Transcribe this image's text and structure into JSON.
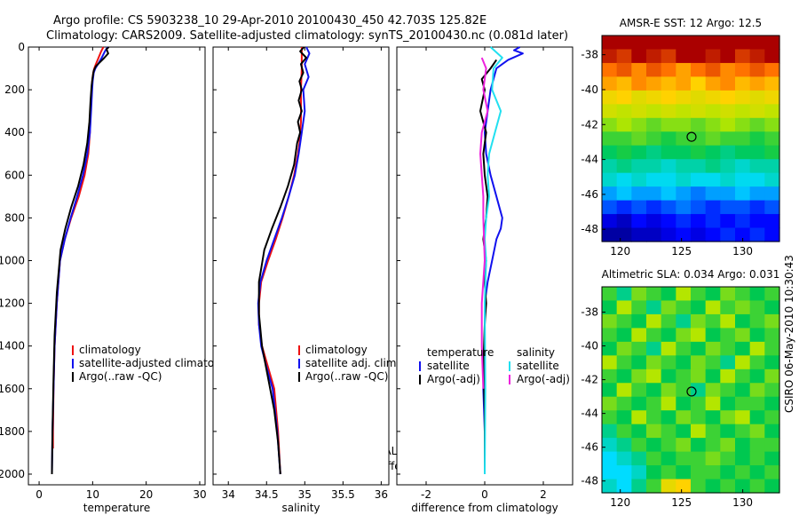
{
  "header": {
    "title_line1": "Argo profile: CS 5903238_10 29-Apr-2010 20100430_450 42.703S 125.82E",
    "title_line2": "Climatology: CARS2009. Satellite-adjusted climatology: synTS_20100430.nc (0.081d later)"
  },
  "side_label": "CSIRO 06-May-2010 10:30:43",
  "credit": {
    "line1": "Argo AUSTRALIA",
    "line2": "PI: Susan Wijffels"
  },
  "colors": {
    "climatology": "#ee1111",
    "satellite": "#1111ee",
    "argo": "#000000",
    "salinity_satellite": "#22e0f0",
    "salinity_argo": "#ee22dd",
    "marker": "#000000"
  },
  "chart_data": [
    {
      "type": "line",
      "name": "temperature-profile",
      "xlabel": "temperature",
      "ylabel": "",
      "xlim": [
        -2,
        31
      ],
      "ylim": [
        2050,
        0
      ],
      "xticks": [
        "0",
        "10",
        "20",
        "30"
      ],
      "xtick_values": [
        0,
        10,
        20,
        30
      ],
      "yticks": [
        "0",
        "200",
        "400",
        "600",
        "800",
        "1000",
        "1200",
        "1400",
        "1600",
        "1800",
        "2000"
      ],
      "ytick_values": [
        0,
        200,
        400,
        600,
        800,
        1000,
        1200,
        1400,
        1600,
        1800,
        2000
      ],
      "legend": [
        "climatology",
        "satellite-adjusted climatology",
        "Argo(..raw -QC)"
      ],
      "legend_placement": "lower-right",
      "series": [
        {
          "name": "climatology",
          "color_key": "climatology",
          "x": [
            12.0,
            11.6,
            11.1,
            10.6,
            10.3,
            10.1,
            9.9,
            9.8,
            9.6,
            9.5,
            9.2,
            8.5,
            7.4,
            6.0,
            4.8,
            3.9,
            3.3,
            2.9,
            2.7,
            2.6,
            2.6
          ],
          "y": [
            0,
            20,
            50,
            80,
            100,
            120,
            160,
            200,
            300,
            400,
            500,
            600,
            700,
            800,
            900,
            1000,
            1200,
            1400,
            1600,
            1800,
            1880
          ]
        },
        {
          "name": "satellite-adjusted climatology",
          "color_key": "satellite",
          "x": [
            12.8,
            12.3,
            11.7,
            11.0,
            10.5,
            10.2,
            10.0,
            9.9,
            9.7,
            9.5,
            9.0,
            8.2,
            7.1,
            5.9,
            4.8,
            3.9,
            3.3,
            2.9,
            2.7,
            2.5,
            2.4
          ],
          "y": [
            0,
            20,
            50,
            80,
            100,
            120,
            160,
            200,
            300,
            400,
            500,
            600,
            700,
            800,
            900,
            1000,
            1200,
            1400,
            1600,
            1800,
            2000
          ]
        },
        {
          "name": "Argo(..raw -QC)",
          "color_key": "argo",
          "x": [
            13.0,
            12.6,
            12.9,
            12.2,
            11.4,
            10.6,
            10.2,
            10.0,
            9.8,
            9.6,
            9.4,
            9.0,
            8.3,
            7.3,
            6.0,
            4.9,
            4.0,
            3.3,
            2.9,
            2.7,
            2.5,
            2.4
          ],
          "y": [
            0,
            10,
            30,
            50,
            70,
            90,
            110,
            140,
            180,
            250,
            350,
            450,
            550,
            650,
            750,
            850,
            950,
            1150,
            1350,
            1550,
            1800,
            2000
          ]
        }
      ]
    },
    {
      "type": "line",
      "name": "salinity-profile",
      "xlabel": "salinity",
      "ylabel": "",
      "xlim": [
        33.8,
        36.1
      ],
      "ylim": [
        2050,
        0
      ],
      "xticks": [
        "34",
        "34.5",
        "35",
        "35.5",
        "36"
      ],
      "xtick_values": [
        34,
        34.5,
        35,
        35.5,
        36
      ],
      "legend": [
        "climatology",
        "satellite adj. clim.",
        "Argo(..raw -QC)"
      ],
      "legend_placement": "lower-right",
      "series": [
        {
          "name": "climatology",
          "color_key": "climatology",
          "x": [
            34.96,
            34.96,
            34.95,
            34.95,
            34.95,
            34.94,
            34.93,
            34.91,
            34.86,
            34.79,
            34.71,
            34.62,
            34.52,
            34.43,
            34.4,
            34.4,
            34.44,
            34.52,
            34.6,
            34.65,
            34.68
          ],
          "y": [
            0,
            100,
            200,
            300,
            350,
            400,
            450,
            500,
            600,
            700,
            800,
            900,
            1000,
            1100,
            1200,
            1300,
            1400,
            1500,
            1600,
            1800,
            2000
          ]
        },
        {
          "name": "satellite adj. clim.",
          "color_key": "satellite",
          "x": [
            35.02,
            35.06,
            35.0,
            35.05,
            34.98,
            35.0,
            34.96,
            34.92,
            34.87,
            34.79,
            34.7,
            34.6,
            34.5,
            34.42,
            34.39,
            34.4,
            34.43,
            34.5,
            34.58,
            34.64,
            34.68
          ],
          "y": [
            0,
            30,
            80,
            140,
            200,
            300,
            400,
            500,
            600,
            700,
            800,
            900,
            1000,
            1100,
            1200,
            1300,
            1400,
            1500,
            1600,
            1800,
            2000
          ]
        },
        {
          "name": "Argo(..raw -QC)",
          "color_key": "argo",
          "x": [
            34.99,
            34.94,
            35.02,
            34.95,
            34.98,
            34.93,
            34.96,
            34.92,
            34.96,
            34.91,
            34.94,
            34.9,
            34.86,
            34.78,
            34.68,
            34.57,
            34.47,
            34.4,
            34.4,
            34.44,
            34.52,
            34.6,
            34.65,
            34.68
          ],
          "y": [
            0,
            20,
            50,
            80,
            120,
            160,
            200,
            250,
            300,
            350,
            400,
            450,
            550,
            650,
            750,
            850,
            950,
            1100,
            1250,
            1400,
            1550,
            1700,
            1850,
            2000
          ]
        }
      ]
    },
    {
      "type": "line",
      "name": "difference-profile",
      "xlabel": "difference from climatology",
      "ylabel": "",
      "xlim": [
        -3,
        3
      ],
      "ylim": [
        2050,
        0
      ],
      "xticks": [
        "-2",
        "0",
        "2"
      ],
      "xtick_values": [
        -2,
        0,
        2
      ],
      "legend_groups": [
        {
          "title": "temperature",
          "entries": [
            "satellite",
            "Argo(-adj)"
          ]
        },
        {
          "title": "salinity",
          "entries": [
            "satellite",
            "Argo(-adj)"
          ]
        }
      ],
      "legend_placement": "lower",
      "series": [
        {
          "name": "temperature satellite",
          "color_key": "satellite",
          "x": [
            1.2,
            1.0,
            1.3,
            0.8,
            0.6,
            0.4,
            0.2,
            0.1,
            0.0,
            0.05,
            0.2,
            0.4,
            0.6,
            0.55,
            0.4,
            0.25,
            0.1,
            0.0,
            0.0,
            -0.05,
            0.0,
            0.0,
            0.0
          ],
          "y": [
            0,
            15,
            30,
            60,
            80,
            100,
            200,
            300,
            400,
            500,
            600,
            700,
            800,
            850,
            900,
            1000,
            1100,
            1200,
            1400,
            1600,
            1800,
            1950,
            2000
          ]
        },
        {
          "name": "temperature Argo(-adj)",
          "color_key": "argo",
          "x": [
            0.4,
            0.2,
            -0.1,
            0.0,
            -0.15,
            0.05,
            -0.05,
            0.0,
            0.1,
            0.05,
            -0.05,
            0.05,
            0.0,
            0.05,
            0.0,
            -0.05,
            0.0,
            0.0,
            0.0
          ],
          "y": [
            60,
            100,
            150,
            200,
            300,
            400,
            500,
            600,
            700,
            800,
            900,
            1000,
            1100,
            1200,
            1300,
            1500,
            1700,
            1900,
            2000
          ]
        },
        {
          "name": "salinity satellite",
          "color_key": "salinity_satellite",
          "x": [
            0.2,
            0.6,
            0.3,
            0.25,
            0.55,
            0.35,
            0.15,
            0.1,
            0.15,
            0.05,
            0.0,
            0.05,
            0.0,
            0.02,
            0.0
          ],
          "y": [
            0,
            50,
            100,
            200,
            300,
            400,
            500,
            600,
            700,
            800,
            900,
            1000,
            1200,
            1600,
            2000
          ]
        },
        {
          "name": "salinity Argo(-adj)",
          "color_key": "salinity_argo",
          "x": [
            -0.1,
            0.05,
            -0.05,
            0.1,
            -0.1,
            -0.15,
            -0.1,
            -0.05,
            -0.05,
            0.0,
            -0.1,
            -0.1,
            -0.05
          ],
          "y": [
            50,
            100,
            200,
            300,
            400,
            500,
            600,
            700,
            800,
            1000,
            1200,
            1400,
            1600
          ]
        }
      ]
    },
    {
      "type": "heatmap",
      "name": "sst-map",
      "title": "AMSR-E SST: 12 Argo: 12.5",
      "xlim": [
        118.5,
        133
      ],
      "ylim": [
        -48.7,
        -36.9
      ],
      "xticks": [
        "120",
        "125",
        "130"
      ],
      "xtick_values": [
        120,
        125,
        130
      ],
      "yticks": [
        "-38",
        "-40",
        "-42",
        "-44",
        "-46",
        "-48"
      ],
      "ytick_values": [
        -38,
        -40,
        -42,
        -44,
        -46,
        -48
      ],
      "rows_latitude_top_to_bottom": [
        -37.2,
        -38.0,
        -38.8,
        -39.6,
        -40.4,
        -41.2,
        -42.0,
        -42.8,
        -43.6,
        -44.4,
        -45.2,
        -46.0,
        -46.8,
        -47.6,
        -48.4
      ],
      "values": [
        [
          20,
          20,
          20,
          20,
          20,
          20,
          20,
          20,
          20,
          20,
          20,
          20
        ],
        [
          19.5,
          19,
          20,
          19.5,
          19,
          20,
          20,
          19.5,
          20,
          19,
          19.5,
          20
        ],
        [
          18,
          18.5,
          17.5,
          18.5,
          18,
          17,
          18,
          18.5,
          17.5,
          18,
          18.5,
          18
        ],
        [
          17,
          16.5,
          17.5,
          17,
          16.5,
          17,
          16,
          17,
          17.5,
          16.5,
          17,
          16.5
        ],
        [
          15.5,
          16,
          15,
          15.5,
          16,
          15.5,
          15,
          15.5,
          16,
          15.5,
          15,
          15.5
        ],
        [
          14.5,
          14,
          14.5,
          14,
          14.5,
          14,
          14.5,
          14,
          14.5,
          14,
          14.5,
          14
        ],
        [
          13,
          13.5,
          13,
          12.5,
          13,
          13,
          12.5,
          13,
          13.5,
          13,
          12.5,
          13
        ],
        [
          12,
          12,
          12.5,
          12,
          11.5,
          12,
          12,
          12.5,
          12,
          12,
          11.5,
          12
        ],
        [
          11,
          11.5,
          11,
          10.5,
          11,
          11,
          11.5,
          11,
          10.5,
          11,
          11,
          11.5
        ],
        [
          10,
          10.5,
          10,
          10,
          9.5,
          10,
          10,
          10.5,
          10,
          9.5,
          10,
          10
        ],
        [
          9.5,
          9,
          9.5,
          9,
          9,
          9.5,
          9,
          9,
          9.5,
          9,
          9,
          9.5
        ],
        [
          8,
          8.5,
          8,
          8,
          8.5,
          8,
          7.5,
          8,
          8,
          8.5,
          8,
          8
        ],
        [
          7,
          6.5,
          7,
          6.5,
          7,
          7.5,
          7,
          6.5,
          7,
          7,
          6.5,
          7
        ],
        [
          5.5,
          5,
          6,
          5.5,
          6,
          6.5,
          6,
          6.5,
          6,
          6.5,
          6,
          6
        ],
        [
          4.5,
          4.5,
          5,
          5,
          5.5,
          6,
          5.5,
          6,
          6.5,
          6,
          6.5,
          6
        ]
      ],
      "value_range": [
        4,
        20
      ],
      "float_position": {
        "lon": 125.82,
        "lat": -42.703
      }
    },
    {
      "type": "heatmap",
      "name": "sla-map",
      "title": "Altimetric SLA: 0.034 Argo: 0.031",
      "xlim": [
        118.5,
        133
      ],
      "ylim": [
        -48.7,
        -36.5
      ],
      "xticks": [
        "120",
        "125",
        "130"
      ],
      "xtick_values": [
        120,
        125,
        130
      ],
      "yticks": [
        "-38",
        "-40",
        "-42",
        "-44",
        "-46",
        "-48"
      ],
      "ytick_values": [
        -38,
        -40,
        -42,
        -44,
        -46,
        -48
      ],
      "rows_latitude_top_to_bottom": [
        -37.0,
        -37.8,
        -38.6,
        -39.4,
        -40.2,
        -41.0,
        -41.8,
        -42.6,
        -43.4,
        -44.2,
        -45.0,
        -45.8,
        -46.6,
        -47.4,
        -48.2
      ],
      "values": [
        [
          0.5,
          0.4,
          0.55,
          0.5,
          0.45,
          0.6,
          0.5,
          0.45,
          0.55,
          0.5,
          0.45,
          0.5
        ],
        [
          0.45,
          0.6,
          0.5,
          0.4,
          0.55,
          0.5,
          0.45,
          0.6,
          0.5,
          0.55,
          0.5,
          0.45
        ],
        [
          0.55,
          0.5,
          0.45,
          0.6,
          0.5,
          0.4,
          0.55,
          0.5,
          0.6,
          0.45,
          0.5,
          0.55
        ],
        [
          0.5,
          0.45,
          0.6,
          0.5,
          0.45,
          0.55,
          0.6,
          0.45,
          0.5,
          0.55,
          0.45,
          0.5
        ],
        [
          0.45,
          0.55,
          0.5,
          0.4,
          0.6,
          0.5,
          0.45,
          0.55,
          0.5,
          0.45,
          0.6,
          0.5
        ],
        [
          0.6,
          0.5,
          0.45,
          0.55,
          0.5,
          0.45,
          0.55,
          0.5,
          0.4,
          0.6,
          0.5,
          0.45
        ],
        [
          0.5,
          0.45,
          0.55,
          0.6,
          0.45,
          0.5,
          0.55,
          0.45,
          0.6,
          0.5,
          0.45,
          0.55
        ],
        [
          0.45,
          0.6,
          0.5,
          0.45,
          0.55,
          0.5,
          0.4,
          0.55,
          0.5,
          0.45,
          0.55,
          0.5
        ],
        [
          0.55,
          0.5,
          0.45,
          0.5,
          0.6,
          0.45,
          0.5,
          0.6,
          0.45,
          0.5,
          0.5,
          0.45
        ],
        [
          0.5,
          0.45,
          0.6,
          0.5,
          0.45,
          0.55,
          0.5,
          0.45,
          0.55,
          0.6,
          0.45,
          0.5
        ],
        [
          0.4,
          0.5,
          0.45,
          0.55,
          0.5,
          0.45,
          0.6,
          0.5,
          0.45,
          0.5,
          0.55,
          0.45
        ],
        [
          0.35,
          0.4,
          0.5,
          0.45,
          0.5,
          0.55,
          0.45,
          0.5,
          0.55,
          0.45,
          0.5,
          0.5
        ],
        [
          0.3,
          0.35,
          0.4,
          0.5,
          0.45,
          0.5,
          0.5,
          0.55,
          0.5,
          0.45,
          0.5,
          0.45
        ],
        [
          0.3,
          0.3,
          0.35,
          0.45,
          0.5,
          0.45,
          0.5,
          0.5,
          0.45,
          0.5,
          0.45,
          0.5
        ],
        [
          0.35,
          0.3,
          0.4,
          0.5,
          0.7,
          0.75,
          0.5,
          0.45,
          0.5,
          0.45,
          0.5,
          0.45
        ]
      ],
      "value_range": [
        0,
        1
      ],
      "float_position": {
        "lon": 125.82,
        "lat": -42.703
      }
    }
  ]
}
